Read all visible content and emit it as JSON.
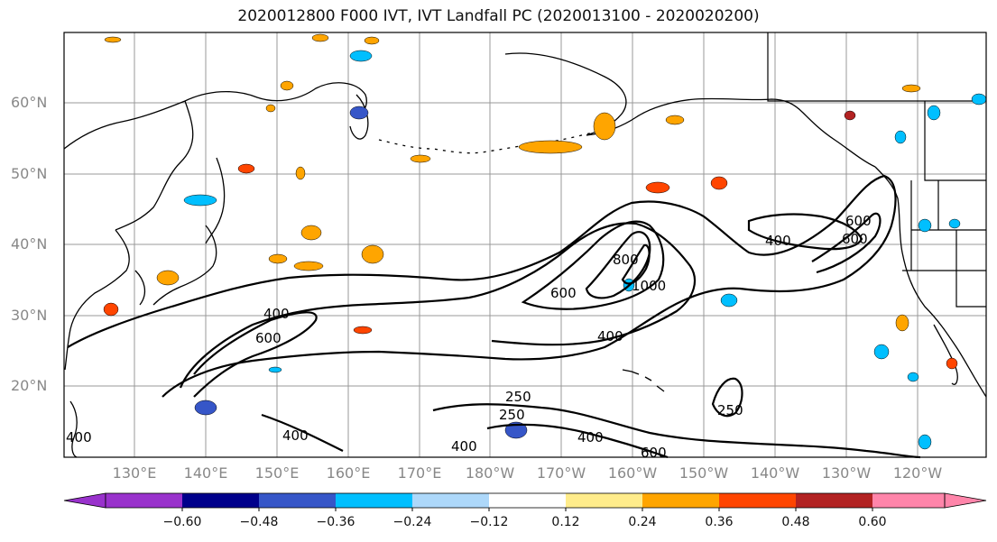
{
  "title": "2020012800 F000 IVT, IVT Landfall PC (2020013100 - 2020020200)",
  "lat_labels": [
    "60°N",
    "50°N",
    "40°N",
    "30°N",
    "20°N"
  ],
  "lon_labels": [
    "130°E",
    "140°E",
    "150°E",
    "160°E",
    "170°E",
    "180°W",
    "170°W",
    "160°W",
    "150°W",
    "140°W",
    "130°W",
    "120°W"
  ],
  "contour_labels": [
    "400",
    "600",
    "600",
    "400",
    "250",
    "400",
    "400",
    "600",
    "800",
    "1000",
    "600",
    "400",
    "250",
    "400",
    "600",
    "400",
    "250"
  ],
  "colorbar": {
    "ticks": [
      "−0.60",
      "−0.48",
      "−0.36",
      "−0.24",
      "−0.12",
      "0.12",
      "0.24",
      "0.36",
      "0.48",
      "0.60"
    ],
    "colors": [
      "#9932cc",
      "#00008b",
      "#3656c8",
      "#00bfff",
      "#add8fa",
      "#ffffff",
      "#ffec8b",
      "#ffa500",
      "#ff4500",
      "#b22222",
      "#ff85aa",
      "#ff85aa"
    ]
  },
  "colors": {
    "frame": "#000000",
    "grid": "#999999",
    "label_gray": "#888888"
  }
}
